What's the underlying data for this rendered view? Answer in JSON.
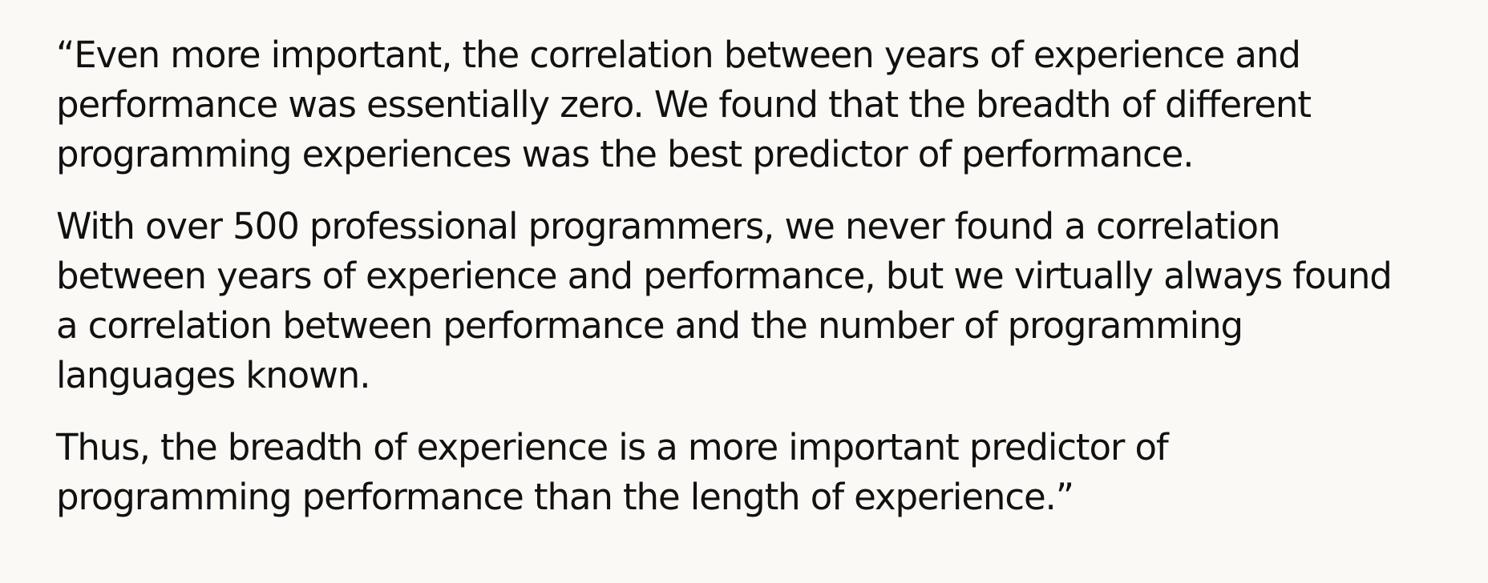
{
  "quote": {
    "paragraphs": [
      {
        "lines": [
          "“Even more important, the correlation between years of experience and",
          "performance was essentially zero. We found that the breadth of different",
          "programming experiences was the best predictor of performance."
        ]
      },
      {
        "lines": [
          "With over 500 professional programmers, we never found a correlation",
          "between years of experience and performance, but we virtually always found",
          "a correlation between performance and the number of programming",
          "languages known."
        ]
      },
      {
        "lines": [
          "Thus, the breadth of experience is a more important predictor of",
          "programming performance than the length of experience.”"
        ]
      }
    ]
  }
}
